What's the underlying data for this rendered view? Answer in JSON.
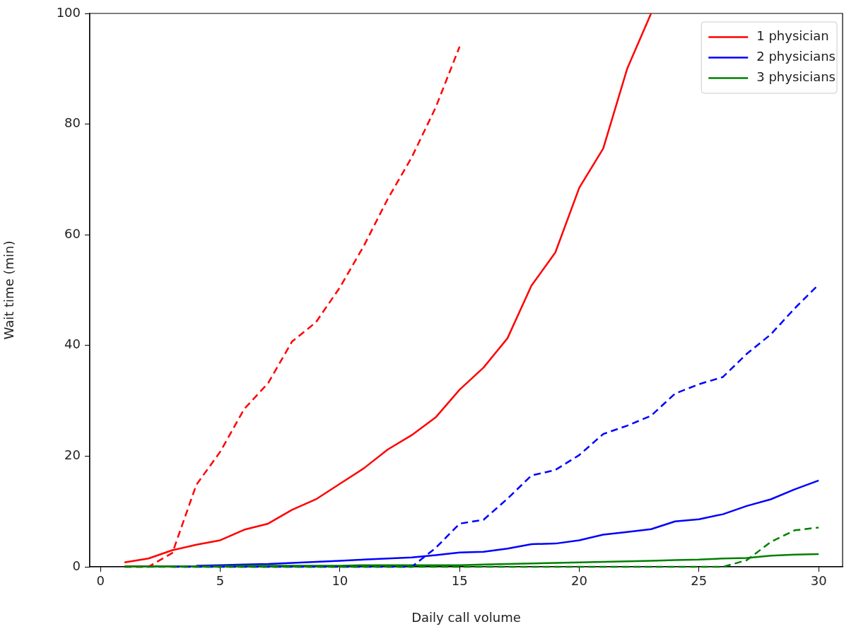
{
  "chart_data": {
    "type": "line",
    "xlabel": "Daily call volume",
    "ylabel": "Wait time (min)",
    "x": [
      1,
      2,
      3,
      4,
      5,
      6,
      7,
      8,
      9,
      10,
      11,
      12,
      13,
      14,
      15,
      16,
      17,
      18,
      19,
      20,
      21,
      22,
      23,
      24,
      25,
      26,
      27,
      28,
      29,
      30
    ],
    "xlim": [
      -0.45,
      31.0
    ],
    "xticks": [
      0,
      5,
      10,
      15,
      20,
      25,
      30
    ],
    "ylim": [
      0,
      100
    ],
    "yticks": [
      0,
      20,
      40,
      60,
      80,
      100
    ],
    "grid": false,
    "legend": "top right",
    "marker": "none",
    "series": [
      {
        "name": "1 physician",
        "color": "#ff0000",
        "line_style": "solid",
        "values": [
          0.8,
          1.5,
          3,
          4,
          4.8,
          6.7,
          7.8,
          10.3,
          12.2,
          15,
          17.8,
          21.2,
          23.8,
          27,
          32,
          36,
          41.3,
          50.8,
          56.8,
          68.5,
          75.6,
          90,
          100,
          null,
          null,
          null,
          null,
          null,
          null,
          null
        ]
      },
      {
        "name": "2 physicians",
        "color": "#0000ff",
        "line_style": "solid",
        "values": [
          null,
          null,
          null,
          0.2,
          0.3,
          0.4,
          0.5,
          0.7,
          0.9,
          1.1,
          1.3,
          1.5,
          1.7,
          2.1,
          2.6,
          2.7,
          3.3,
          4.1,
          4.2,
          4.8,
          5.8,
          6.3,
          6.8,
          8.2,
          8.6,
          9.5,
          11,
          12.2,
          14,
          15.6
        ]
      },
      {
        "name": "3 physicians",
        "color": "#008000",
        "line_style": "solid",
        "values": [
          0.1,
          0.1,
          0.1,
          0.1,
          0.1,
          0.2,
          0.2,
          0.2,
          0.2,
          0.2,
          0.3,
          0.3,
          0.3,
          0.3,
          0.3,
          0.4,
          0.5,
          0.6,
          0.7,
          0.8,
          0.9,
          1,
          1.1,
          1.2,
          1.3,
          1.5,
          1.6,
          2,
          2.2,
          2.3
        ]
      },
      {
        "color": "#ff0000",
        "line_style": "dashed",
        "values": [
          0,
          0,
          2.5,
          14.8,
          20.8,
          28.5,
          33.2,
          40.7,
          44.2,
          50.5,
          58,
          66.5,
          74,
          83,
          94,
          null,
          null,
          null,
          null,
          null,
          null,
          null,
          null,
          null,
          null,
          null,
          null,
          null,
          null,
          null
        ]
      },
      {
        "color": "#0000ff",
        "line_style": "dashed",
        "values": [
          null,
          null,
          0,
          0,
          0,
          0,
          0,
          0,
          0,
          0,
          0,
          0,
          0,
          3.4,
          7.8,
          8.5,
          12.3,
          16.5,
          17.5,
          20.2,
          24,
          25.5,
          27.3,
          31.3,
          33,
          34.3,
          38.5,
          42,
          46.7,
          51
        ]
      },
      {
        "color": "#008000",
        "line_style": "dashed",
        "values": [
          0,
          0,
          0,
          0,
          0,
          0,
          0,
          0,
          0,
          0,
          0,
          0,
          0,
          0,
          0,
          0,
          0,
          0,
          0,
          0,
          0,
          0,
          0,
          0,
          0,
          0,
          1.2,
          4.5,
          6.6,
          7.1
        ]
      }
    ]
  }
}
